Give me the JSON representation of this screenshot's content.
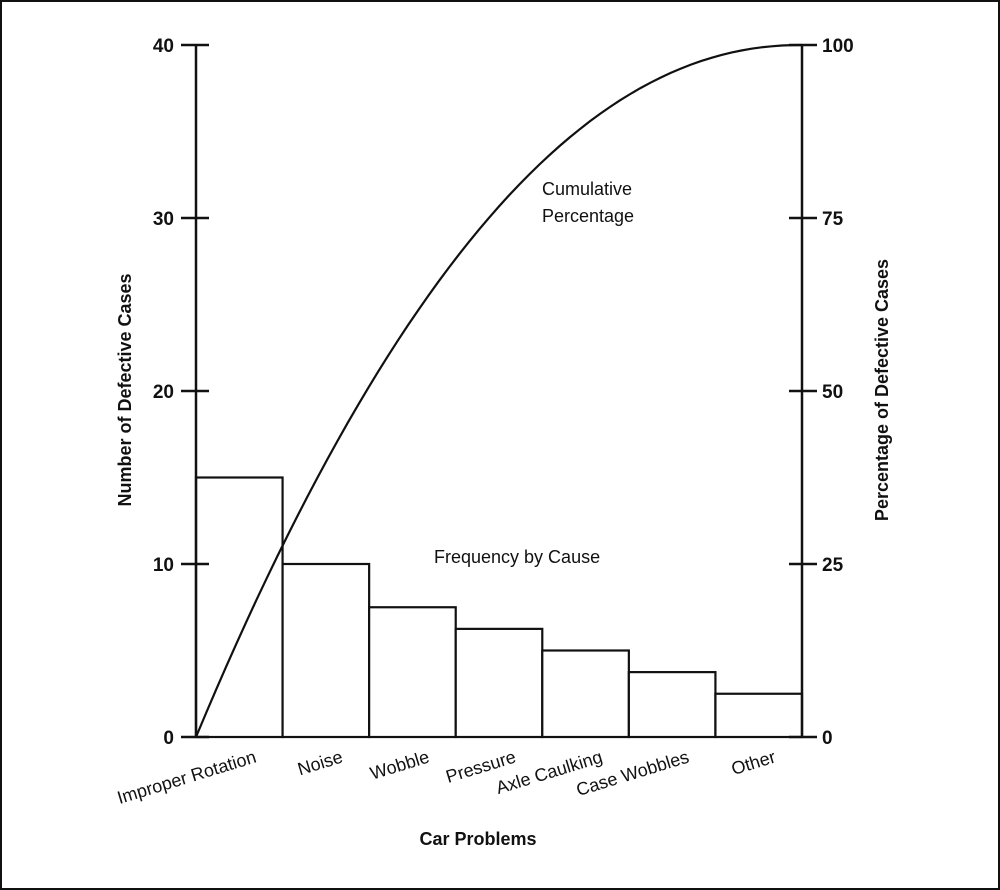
{
  "chart_data": {
    "type": "bar",
    "title": "",
    "xlabel": "Car Problems",
    "ylabel": "Number of Defective Cases",
    "y2label": "Percentage of Defective Cases",
    "ylim": [
      0,
      40
    ],
    "y2lim": [
      0,
      100
    ],
    "yticks": [
      0,
      10,
      20,
      30,
      40
    ],
    "y2ticks": [
      0,
      25,
      50,
      75,
      100
    ],
    "categories": [
      "Improper Rotation",
      "Noise",
      "Wobble",
      "Pressure",
      "Axle Caulking",
      "Case Wobbles",
      "Other"
    ],
    "series": [
      {
        "name": "Frequency by Cause",
        "type": "bar",
        "values": [
          15,
          10,
          7.5,
          6.25,
          5,
          3.75,
          2.5
        ]
      },
      {
        "name": "Cumulative Percentage",
        "type": "line",
        "description_values": "smooth concave curve from 0 to 100"
      }
    ],
    "annotations": {
      "cumulative_line1": "Cumulative",
      "cumulative_line2": "Percentage",
      "frequency": "Frequency by Cause"
    },
    "grid": false
  }
}
